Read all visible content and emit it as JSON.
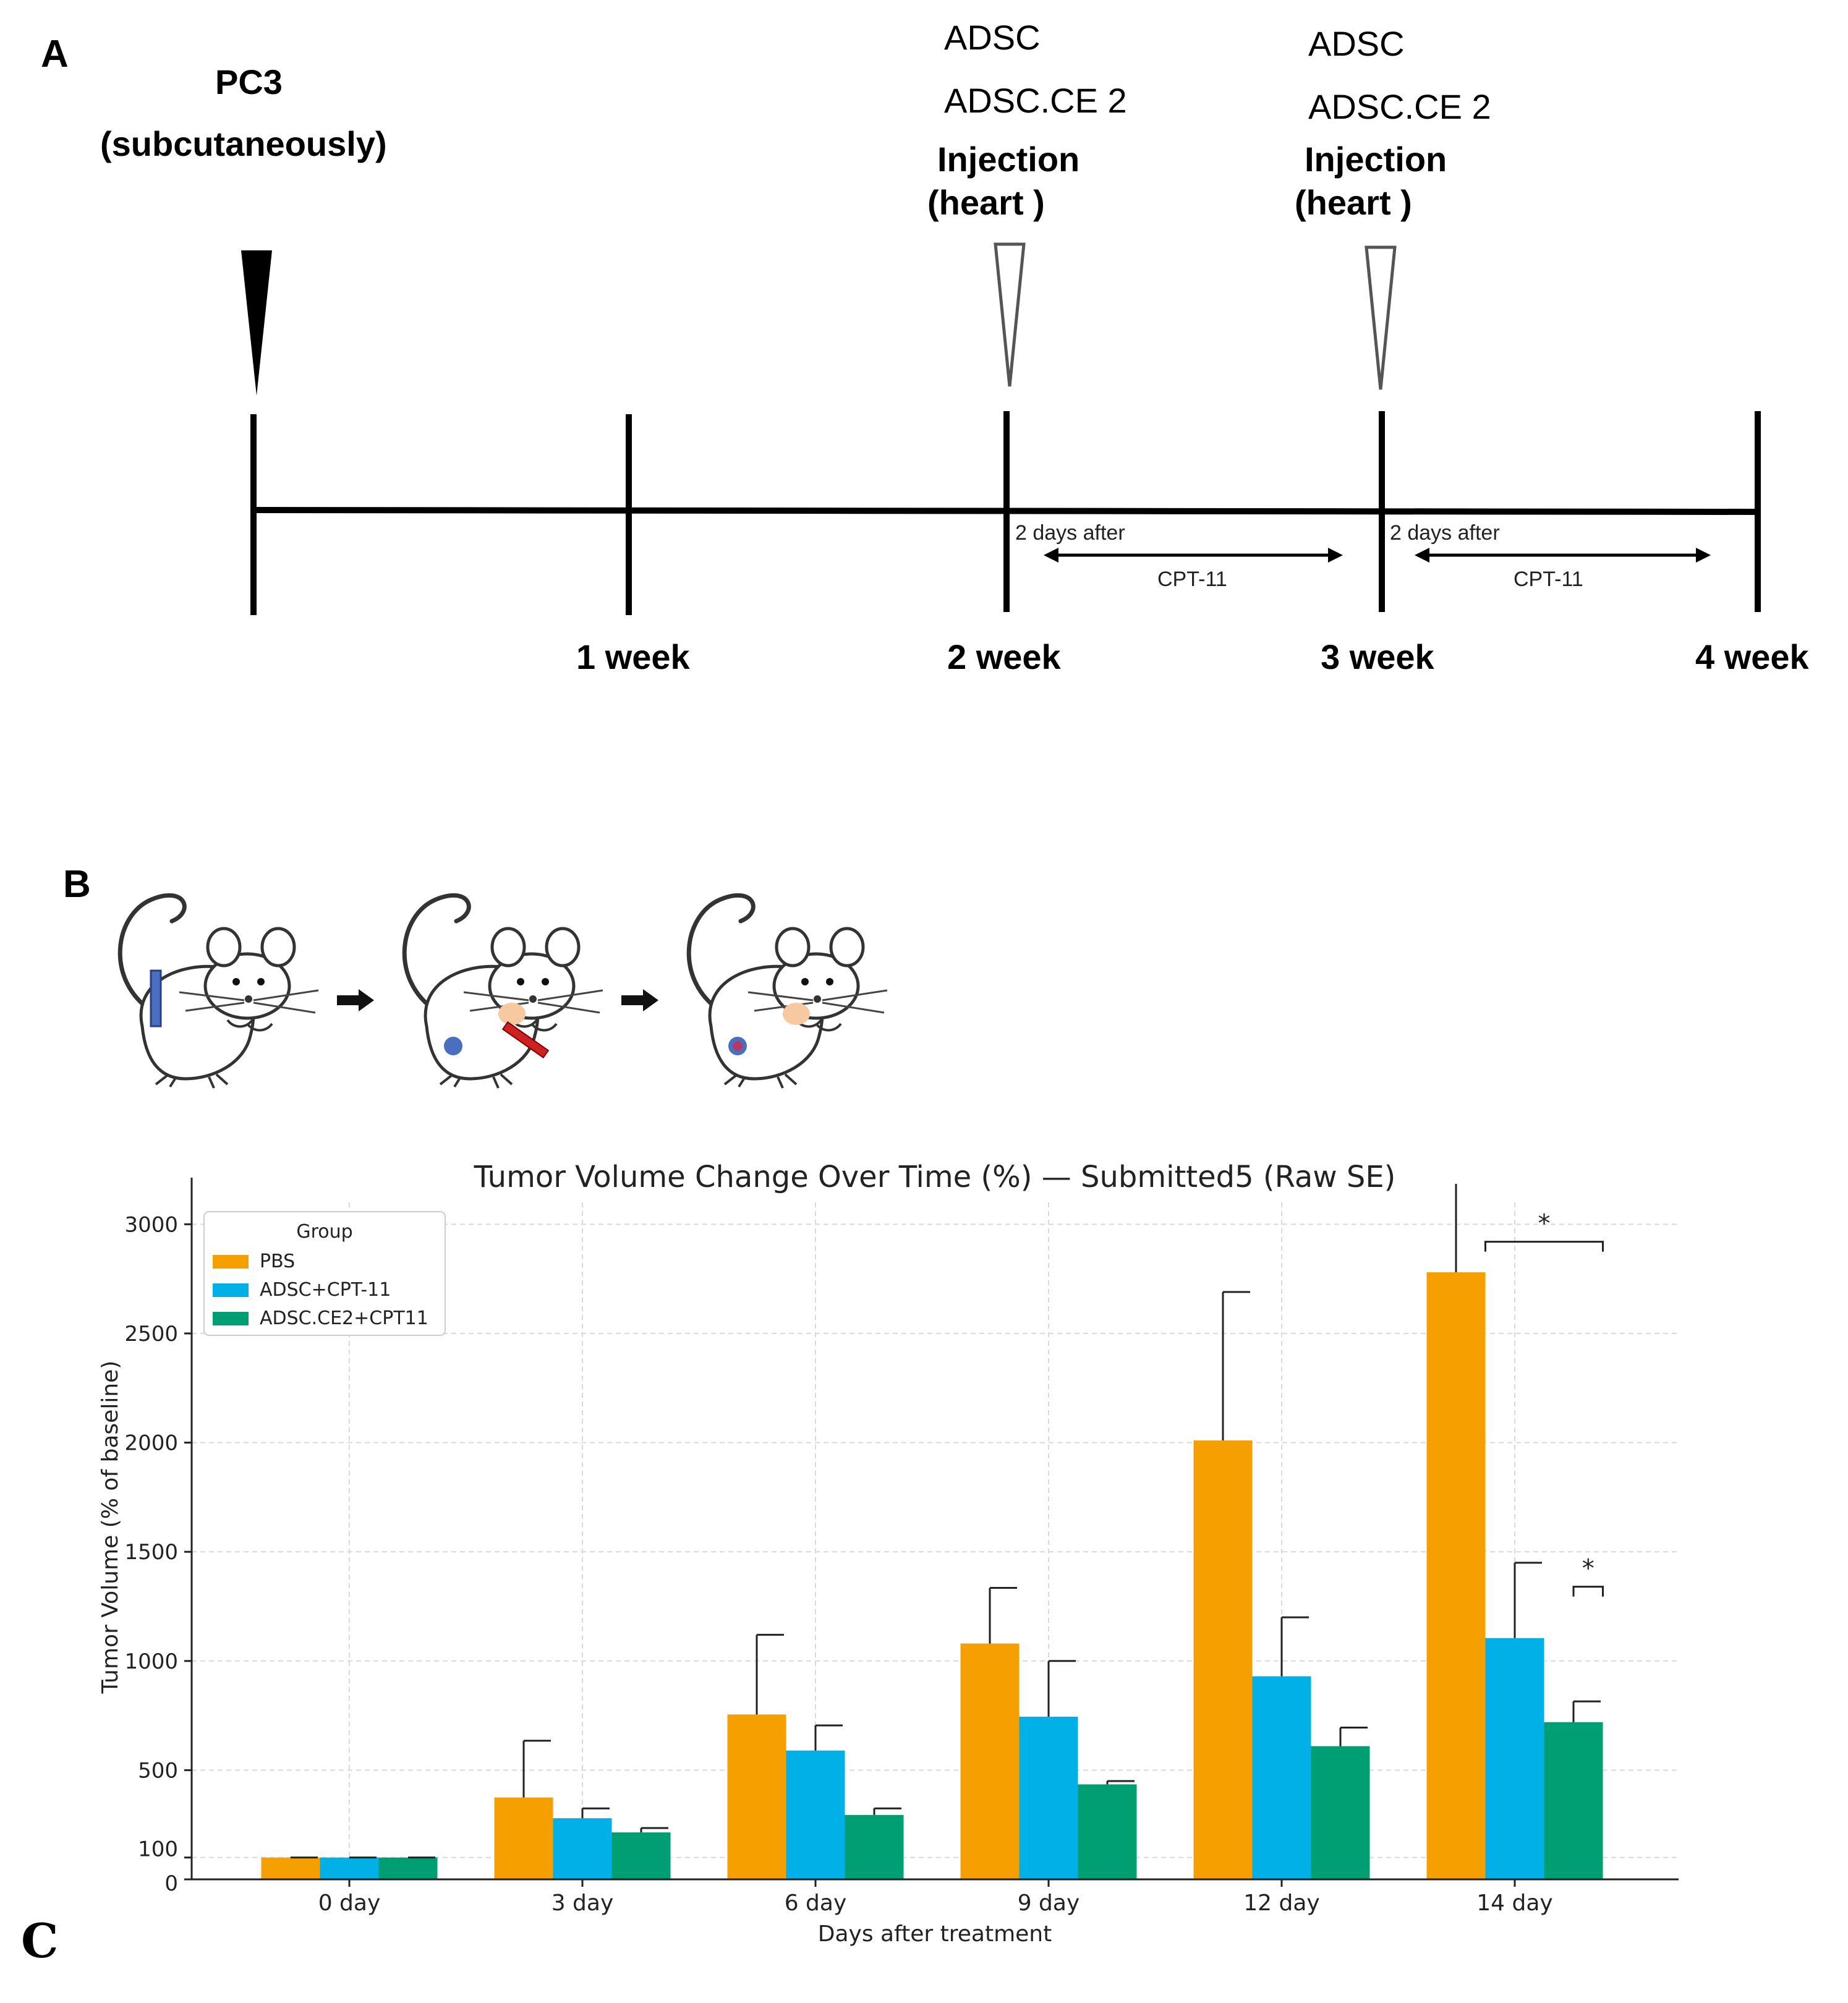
{
  "panels": {
    "a": "A",
    "b": "B",
    "c": "C"
  },
  "timeline": {
    "pc3": {
      "line1": "PC3",
      "line2": "(subcutaneously)"
    },
    "injection1": {
      "line1": "ADSC",
      "line2": "ADSC.CE 2",
      "line3": "Injection",
      "line4": "(heart )"
    },
    "injection2": {
      "line1": "ADSC",
      "line2": "ADSC.CE 2",
      "line3": "Injection",
      "line4": "(heart )"
    },
    "weeks": [
      "1 week",
      "2 week",
      "3 week",
      "4 week"
    ],
    "interval1": {
      "note": "2 days after",
      "drug": "CPT-11"
    },
    "interval2": {
      "note": "2 days after",
      "drug": "CPT-11"
    }
  },
  "colors": {
    "pbs": "#F5A000",
    "adsc": "#00B0E6",
    "ce2": "#009E73"
  },
  "chart_data": {
    "type": "bar",
    "title": "Tumor Volume Change Over Time (%) — Submitted5 (Raw SE)",
    "xlabel": "Days after treatment",
    "ylabel": "Tumor Volume (% of baseline)",
    "categories": [
      "0 day",
      "3 day",
      "6 day",
      "9 day",
      "12 day",
      "14 day"
    ],
    "yticks": [
      0,
      100,
      500,
      1000,
      1500,
      2000,
      2500,
      3000
    ],
    "ylim": [
      0,
      3100
    ],
    "legend_title": "Group",
    "legend_position": "top-left",
    "series": [
      {
        "name": "PBS",
        "color": "#F5A000",
        "values": [
          100,
          375,
          755,
          1080,
          2010,
          2780
        ],
        "errors": [
          0,
          260,
          365,
          255,
          680,
          330
        ]
      },
      {
        "name": "ADSC+CPT-11",
        "color": "#00B0E6",
        "values": [
          100,
          280,
          590,
          745,
          930,
          1105
        ],
        "errors": [
          0,
          45,
          115,
          255,
          270,
          345
        ]
      },
      {
        "name": "ADSC.CE2+CPT11",
        "color": "#009E73",
        "values": [
          100,
          215,
          295,
          435,
          610,
          720
        ],
        "errors": [
          0,
          20,
          30,
          15,
          85,
          95
        ]
      }
    ],
    "annotations": [
      {
        "label": "*",
        "category": "14 day",
        "from": "PBS",
        "to": "ADSC.CE2+CPT11",
        "y": 2920
      },
      {
        "label": "*",
        "category": "14 day",
        "from": "ADSC.CE2+CPT11",
        "to": "ADSC.CE2+CPT11",
        "y": 1340
      }
    ]
  }
}
